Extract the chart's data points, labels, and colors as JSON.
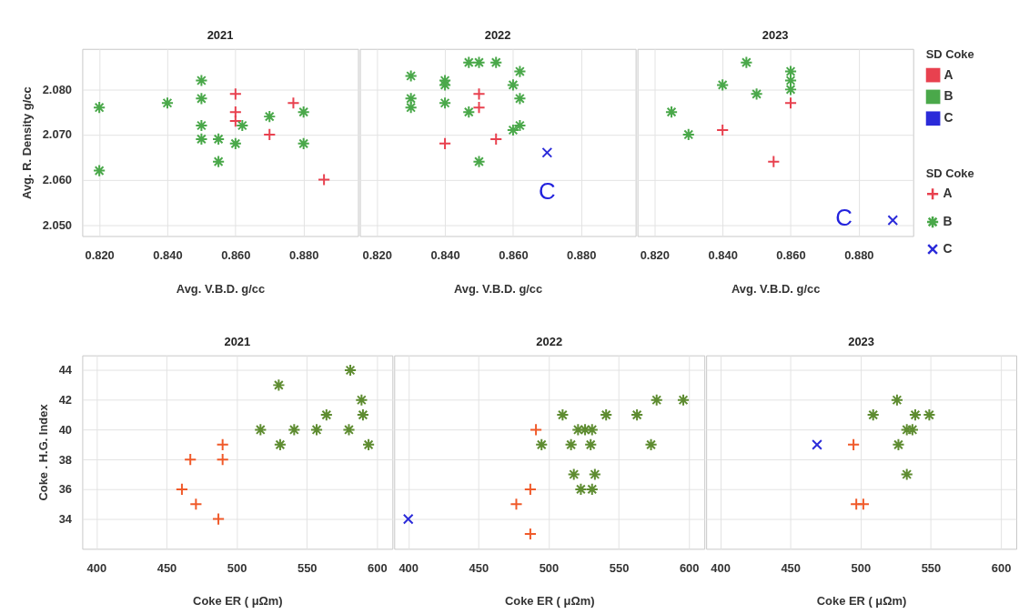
{
  "chart_data": [
    {
      "type": "scatter",
      "title": "2021",
      "xlabel": "Avg. V.B.D. g/cc",
      "ylabel": "Avg. R. Density g/cc",
      "xlim": [
        0.815,
        0.896
      ],
      "ylim": [
        2.0475,
        2.089
      ],
      "xticks": [
        {
          "value": 0.82,
          "label": "0.820"
        },
        {
          "value": 0.84,
          "label": "0.840"
        },
        {
          "value": 0.86,
          "label": "0.860"
        },
        {
          "value": 0.88,
          "label": "0.880"
        }
      ],
      "yticks": [
        {
          "value": 2.05,
          "label": "2.050"
        },
        {
          "value": 2.06,
          "label": "2.060"
        },
        {
          "value": 2.07,
          "label": "2.070"
        },
        {
          "value": 2.08,
          "label": "2.080"
        }
      ],
      "grid": true,
      "series": [
        {
          "color": "#e8414f",
          "marker": "cross",
          "x": [
            0.86,
            0.86,
            0.86,
            0.87,
            0.877,
            0.886
          ],
          "values": [
            2.079,
            2.075,
            2.073,
            2.07,
            2.077,
            2.06
          ]
        },
        {
          "color": "#4aa84a",
          "marker": "cross",
          "x": [
            0.82,
            0.82,
            0.84,
            0.85,
            0.85,
            0.85,
            0.85,
            0.855,
            0.855,
            0.86,
            0.862,
            0.87,
            0.88,
            0.88
          ],
          "values": [
            2.076,
            2.062,
            2.077,
            2.082,
            2.078,
            2.072,
            2.069,
            2.069,
            2.064,
            2.068,
            2.072,
            2.074,
            2.075,
            2.068
          ]
        }
      ]
    },
    {
      "type": "scatter",
      "title": "2022",
      "xlabel": "Avg. V.B.D. g/cc",
      "xlim": [
        0.815,
        0.896
      ],
      "ylim": [
        2.0475,
        2.089
      ],
      "xticks": [
        {
          "value": 0.82,
          "label": "0.820"
        },
        {
          "value": 0.84,
          "label": "0.840"
        },
        {
          "value": 0.86,
          "label": "0.860"
        },
        {
          "value": 0.88,
          "label": "0.880"
        }
      ],
      "yticks": [
        2.05,
        2.06,
        2.07,
        2.08
      ],
      "grid": true,
      "tick_labels": "x",
      "series": [
        {
          "color": "#e8414f",
          "marker": "cross",
          "x": [
            0.85,
            0.85,
            0.84,
            0.855
          ],
          "values": [
            2.079,
            2.076,
            2.068,
            2.069
          ]
        },
        {
          "color": "#4aa84a",
          "marker": "cross",
          "x": [
            0.83,
            0.83,
            0.83,
            0.84,
            0.84,
            0.84,
            0.847,
            0.85,
            0.855,
            0.847,
            0.85,
            0.86,
            0.862,
            0.862,
            0.86,
            0.862
          ],
          "values": [
            2.083,
            2.078,
            2.076,
            2.082,
            2.081,
            2.077,
            2.086,
            2.086,
            2.086,
            2.075,
            2.064,
            2.081,
            2.084,
            2.078,
            2.071,
            2.072
          ]
        },
        {
          "color": "#2b2bd9",
          "marker": "cross",
          "x": [
            0.87
          ],
          "values": [
            2.066
          ]
        }
      ],
      "annotations": [
        {
          "text": "C",
          "x": 0.87,
          "y": 2.066
        }
      ]
    },
    {
      "type": "scatter",
      "title": "2023",
      "xlabel": "Avg. V.B.D. g/cc",
      "xlim": [
        0.815,
        0.896
      ],
      "ylim": [
        2.0475,
        2.089
      ],
      "xticks": [
        {
          "value": 0.82,
          "label": "0.820"
        },
        {
          "value": 0.84,
          "label": "0.840"
        },
        {
          "value": 0.86,
          "label": "0.860"
        },
        {
          "value": 0.88,
          "label": "0.880"
        }
      ],
      "yticks": [
        2.05,
        2.06,
        2.07,
        2.08
      ],
      "grid": true,
      "tick_labels": "x",
      "legend": "right",
      "legend_title": "SD Coke",
      "series": [
        {
          "name": "A",
          "color": "#e8414f",
          "marker": "cross",
          "x": [
            0.86,
            0.84,
            0.855
          ],
          "values": [
            2.077,
            2.071,
            2.064
          ]
        },
        {
          "name": "B",
          "color": "#4aa84a",
          "marker": "cross",
          "x": [
            0.825,
            0.83,
            0.84,
            0.847,
            0.85,
            0.86,
            0.86,
            0.86
          ],
          "values": [
            2.075,
            2.07,
            2.081,
            2.086,
            2.079,
            2.084,
            2.082,
            2.08
          ]
        },
        {
          "name": "C",
          "color": "#2b2bd9",
          "marker": "cross",
          "x": [
            0.89
          ],
          "values": [
            2.051
          ]
        }
      ],
      "annotations": [
        {
          "text": "C",
          "x": 0.89,
          "y": 2.051
        }
      ]
    },
    {
      "type": "scatter",
      "title": "2021",
      "xlabel": "Coke ER ( μΩm)",
      "ylabel": "Coke . H.G. Index",
      "xlim": [
        390,
        611
      ],
      "ylim": [
        32,
        45
      ],
      "xticks": [
        400,
        450,
        500,
        550,
        600
      ],
      "yticks": [
        34,
        36,
        38,
        40,
        42,
        44
      ],
      "grid": true,
      "series": [
        {
          "color": "#f05a2a",
          "marker": "cross",
          "x": [
            490,
            490,
            467,
            461,
            471,
            487
          ],
          "values": [
            39,
            38,
            38,
            36,
            35,
            34
          ]
        },
        {
          "color": "#5e8c31",
          "marker": "cross",
          "x": [
            530,
            517,
            531,
            541,
            557,
            564,
            581,
            580,
            589,
            590,
            594
          ],
          "values": [
            43,
            40,
            39,
            40,
            40,
            41,
            44,
            40,
            42,
            41,
            39
          ]
        }
      ]
    },
    {
      "type": "scatter",
      "title": "2022",
      "xlabel": "Coke ER ( μΩm)",
      "xlim": [
        390,
        611
      ],
      "ylim": [
        32,
        45
      ],
      "xticks": [
        400,
        450,
        500,
        550,
        600
      ],
      "yticks": [
        34,
        36,
        38,
        40,
        42,
        44
      ],
      "grid": true,
      "tick_labels": "x",
      "series": [
        {
          "color": "#f05a2a",
          "marker": "cross",
          "x": [
            491,
            487,
            477,
            487
          ],
          "values": [
            40,
            36,
            35,
            33
          ]
        },
        {
          "color": "#5e8c31",
          "marker": "cross",
          "x": [
            510,
            495,
            516,
            530,
            521,
            526,
            531,
            541,
            563,
            577,
            596,
            573,
            518,
            533,
            523,
            531
          ],
          "values": [
            41,
            39,
            39,
            39,
            40,
            40,
            40,
            41,
            41,
            42,
            42,
            39,
            37,
            37,
            36,
            36
          ]
        },
        {
          "color": "#2b2bd9",
          "marker": "cross",
          "x": [
            400
          ],
          "values": [
            34
          ]
        }
      ]
    },
    {
      "type": "scatter",
      "title": "2023",
      "xlabel": "Coke ER ( μΩm)",
      "xlim": [
        390,
        611
      ],
      "ylim": [
        32,
        45
      ],
      "xticks": [
        400,
        450,
        500,
        550,
        600
      ],
      "yticks": [
        34,
        36,
        38,
        40,
        42,
        44
      ],
      "grid": true,
      "tick_labels": "x",
      "series": [
        {
          "color": "#f05a2a",
          "marker": "cross",
          "x": [
            495,
            497,
            502
          ],
          "values": [
            39,
            35,
            35
          ]
        },
        {
          "color": "#5e8c31",
          "marker": "cross",
          "x": [
            509,
            526,
            539,
            549,
            533,
            537,
            527,
            533
          ],
          "values": [
            41,
            42,
            41,
            41,
            40,
            40,
            39,
            37
          ]
        },
        {
          "color": "#2b2bd9",
          "marker": "cross",
          "x": [
            469
          ],
          "values": [
            39
          ]
        }
      ]
    }
  ]
}
